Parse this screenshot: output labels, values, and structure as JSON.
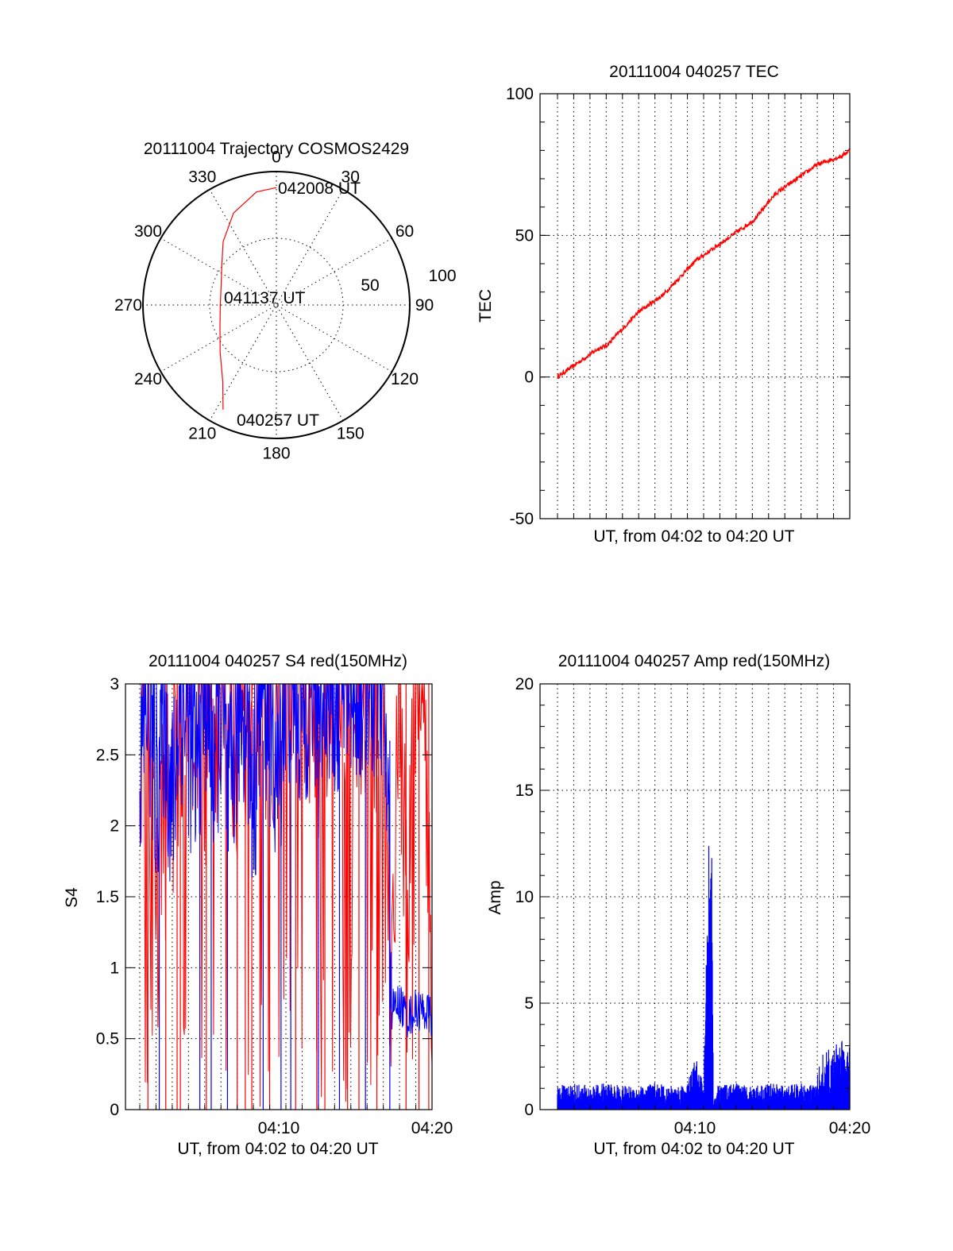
{
  "chart_data": [
    {
      "type": "polar",
      "title": "20111004 Trajectory COSMOS2429",
      "azimuth_labels": [
        "0",
        "30",
        "60",
        "90",
        "120",
        "150",
        "180",
        "210",
        "240",
        "270",
        "300",
        "330"
      ],
      "radial_labels": [
        "50",
        "100"
      ],
      "rlim": [
        0,
        100
      ],
      "grid": true,
      "annotations": [
        {
          "text": "042008 UT",
          "az": 0,
          "r": 85
        },
        {
          "text": "041137 UT",
          "az": 270,
          "r": 8
        },
        {
          "text": "040257 UT",
          "az": 207,
          "r": 88
        }
      ],
      "series": [
        {
          "color": "#ff0000",
          "points": [
            [
              207,
              88
            ],
            [
              215,
              70
            ],
            [
              230,
              55
            ],
            [
              250,
              45
            ],
            [
              270,
              42
            ],
            [
              290,
              44
            ],
            [
              305,
              50
            ],
            [
              320,
              62
            ],
            [
              335,
              76
            ],
            [
              350,
              86
            ],
            [
              0,
              88
            ]
          ]
        }
      ]
    },
    {
      "type": "line",
      "title": "20111004 040257 TEC",
      "xlabel": "UT, from 04:02 to 04:20 UT",
      "ylabel": "TEC",
      "ylim": [
        -50,
        100
      ],
      "yticks": [
        "-50",
        "0",
        "50",
        "100"
      ],
      "grid": true,
      "color": "#ff0000",
      "x_minutes": [
        0.0,
        0.5,
        1.0,
        1.5,
        2.0,
        2.5,
        3.0,
        3.5,
        4.0,
        4.5,
        5.0,
        5.5,
        6.0,
        6.5,
        7.0,
        7.5,
        8.0,
        8.5,
        9.0,
        9.5,
        10.0,
        10.5,
        11.0,
        11.5,
        12.0,
        12.5,
        13.0,
        13.5,
        14.0,
        14.5,
        15.0,
        15.5,
        16.0,
        16.5,
        17.0,
        17.5,
        18.0
      ],
      "values": [
        0,
        2,
        4,
        6,
        8,
        10,
        11,
        14,
        17,
        20,
        23,
        25,
        27,
        29,
        32,
        35,
        38,
        41,
        43,
        45,
        47,
        49,
        51,
        53,
        55,
        58,
        62,
        65,
        67,
        69,
        71,
        73,
        75,
        76,
        77,
        78,
        80
      ]
    },
    {
      "type": "line",
      "title": "20111004 040257 S4 red(150MHz)",
      "xlabel": "UT, from 04:02 to 04:20 UT",
      "ylabel": "S4",
      "ylim": [
        0,
        3
      ],
      "yticks": [
        "0",
        "0.5",
        "1",
        "1.5",
        "2",
        "2.5",
        "3"
      ],
      "xticks": [
        "04:10",
        "04:20"
      ],
      "grid": true,
      "series": [
        {
          "color": "#ff0000",
          "x_minutes": [
            0.0,
            1.0,
            2.0,
            3.0,
            4.0,
            5.0,
            6.0,
            7.0,
            8.0,
            9.0,
            10.0,
            11.0,
            12.0,
            13.0,
            14.0,
            15.0,
            15.5,
            16.0,
            16.5,
            17.0,
            17.5,
            18.0
          ],
          "values": [
            2.5,
            1.3,
            2.0,
            2.8,
            2.2,
            2.6,
            2.3,
            2.7,
            2.5,
            2.6,
            2.8,
            2.4,
            2.9,
            2.6,
            2.5,
            2.3,
            0.6,
            2.8,
            0.7,
            3.0,
            2.8,
            0.6
          ]
        },
        {
          "color": "#0000ff",
          "x_minutes": [
            0.0,
            0.5,
            1.0,
            1.5,
            2.0,
            2.5,
            3.0,
            3.5,
            4.0,
            4.5,
            5.0,
            5.5,
            6.0,
            6.5,
            7.0,
            7.5,
            8.0,
            8.5,
            9.0,
            9.5,
            10.0,
            10.5,
            11.0,
            11.5,
            12.0,
            12.5,
            13.0,
            13.5,
            14.0,
            14.5,
            15.0,
            15.5,
            16.0,
            16.5,
            17.0,
            17.5,
            18.0
          ],
          "values": [
            2.0,
            2.5,
            1.8,
            2.4,
            1.6,
            2.5,
            2.2,
            1.9,
            2.6,
            2.0,
            2.4,
            1.6,
            2.3,
            2.5,
            1.7,
            2.6,
            2.3,
            1.8,
            2.6,
            2.5,
            2.3,
            2.6,
            2.4,
            2.7,
            2.5,
            2.6,
            2.7,
            2.5,
            2.7,
            2.5,
            2.6,
            0.7,
            0.75,
            0.65,
            0.7,
            0.7,
            0.65
          ]
        }
      ],
      "blue_drops_x_minutes": [
        1.2,
        3.7,
        4.4,
        5.4,
        7.6,
        8.7,
        9.3,
        11.0,
        12.3,
        13.9,
        15.4
      ],
      "red_drops_x_minutes": [
        0.5,
        1.6,
        2.3,
        2.5,
        4.1,
        6.0,
        6.5,
        6.9,
        8.0,
        9.6,
        10.9,
        11.4,
        12.8,
        13.5,
        14.6,
        16.4,
        17.2,
        17.8
      ]
    },
    {
      "type": "line",
      "title": "20111004 040257 Amp red(150MHz)",
      "xlabel": "UT, from 04:02 to 04:20 UT",
      "ylabel": "Amp",
      "ylim": [
        0,
        20
      ],
      "yticks": [
        "0",
        "5",
        "10",
        "15",
        "20"
      ],
      "xticks": [
        "04:10",
        "04:20"
      ],
      "grid": true,
      "color": "#0000ff",
      "x_minutes": [
        0.0,
        1.0,
        2.0,
        3.0,
        4.0,
        5.0,
        6.0,
        7.0,
        8.0,
        8.5,
        9.0,
        9.4,
        9.5,
        9.6,
        9.8,
        10.0,
        11.0,
        12.0,
        13.0,
        14.0,
        15.0,
        16.0,
        16.5,
        17.0,
        17.5,
        18.0
      ],
      "values": [
        0.8,
        0.9,
        0.8,
        0.9,
        0.8,
        0.8,
        0.9,
        0.8,
        0.9,
        1.8,
        0.8,
        11.0,
        13.0,
        0.2,
        0.8,
        0.8,
        0.9,
        0.8,
        0.9,
        0.8,
        0.9,
        0.8,
        1.7,
        2.0,
        2.3,
        1.8
      ]
    }
  ]
}
